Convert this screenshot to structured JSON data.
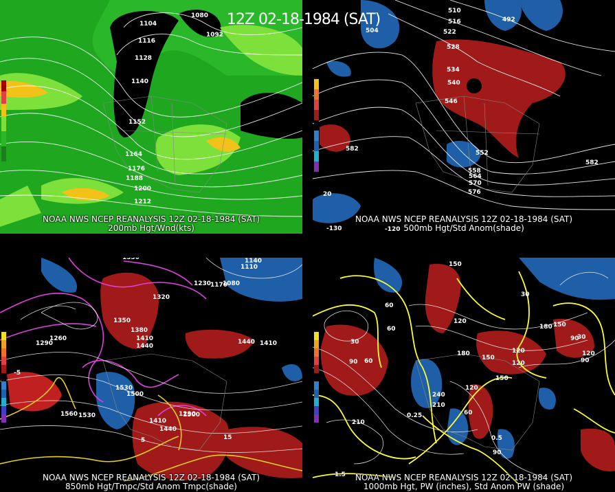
{
  "title": "12Z 02-18-1984 (SAT)",
  "panels": [
    {
      "line1": "NOAA NWS NCEP REANALYSIS 12Z 02-18-1984 (SAT)",
      "line2": "200mb Hgt/Wnd(kts)",
      "labels": [
        "1080",
        "1104",
        "1092",
        "1116",
        "1128",
        "1140",
        "1152",
        "1164",
        "1176",
        "1188",
        "1200",
        "1212"
      ],
      "scale": [
        "190",
        "150",
        "110",
        "70",
        "50",
        "30"
      ],
      "colors": {
        "bg": "#1fa81f",
        "light": "#7ee03a",
        "yellow": "#f2c21a",
        "dark": "#000000"
      }
    },
    {
      "line1": "NOAA NWS NCEP REANALYSIS 12Z 02-18-1984 (SAT)",
      "line2": "500mb Hgt/Std Anom(shade)",
      "labels": [
        "510",
        "516",
        "522",
        "528",
        "534",
        "540",
        "546",
        "552",
        "558",
        "564",
        "570",
        "576",
        "582",
        "582",
        "492",
        "504",
        "20",
        "-120",
        "-130"
      ],
      "scale": [
        "3",
        "2",
        "1",
        "0",
        "1",
        "2",
        "3",
        "4",
        "5"
      ],
      "colors": {
        "pos": "#a01a1a",
        "neg": "#1f5fa8"
      }
    },
    {
      "line1": "NOAA NWS NCEP REANALYSIS 12Z 02-18-1984 (SAT)",
      "line2": "850mb Hgt/Tmpc/Std Anom Tmpc(shade)",
      "labels": [
        "1350",
        "1320",
        "1350",
        "1380",
        "1410",
        "1440",
        "1410",
        "1440",
        "1530",
        "1500",
        "1560",
        "1530",
        "1500",
        "1410",
        "1440",
        "1260",
        "1290",
        "1230",
        "1170",
        "1140",
        "1110",
        "1080",
        "1290",
        "-5",
        "5",
        "15"
      ],
      "scale": [
        "5",
        "4",
        "3",
        "2",
        "1",
        "0",
        "1",
        "2",
        "3",
        "4",
        "5"
      ],
      "colors": {
        "contour": "#e040e0",
        "temp": "#e8d020"
      }
    },
    {
      "line1": "NOAA NWS NCEP REANALYSIS 12Z 02-18-1984 (SAT)",
      "line2": "1000mb Hgt, PW (inches), Std Anom PW (shade)",
      "labels": [
        "150",
        "120",
        "90",
        "60",
        "30",
        "180",
        "150",
        "120",
        "90",
        "60",
        "30",
        "210",
        "240",
        "210",
        "180",
        "120",
        "150",
        "120",
        "90",
        "60",
        "0.25",
        "0.5",
        "1.5",
        "90",
        "150",
        "120",
        "30",
        "60"
      ],
      "scale": [
        "5",
        "4",
        "3",
        "2",
        "1",
        "0",
        "1",
        "2",
        "3",
        "4",
        "5"
      ],
      "colors": {
        "pw": "#ffff30"
      }
    }
  ]
}
